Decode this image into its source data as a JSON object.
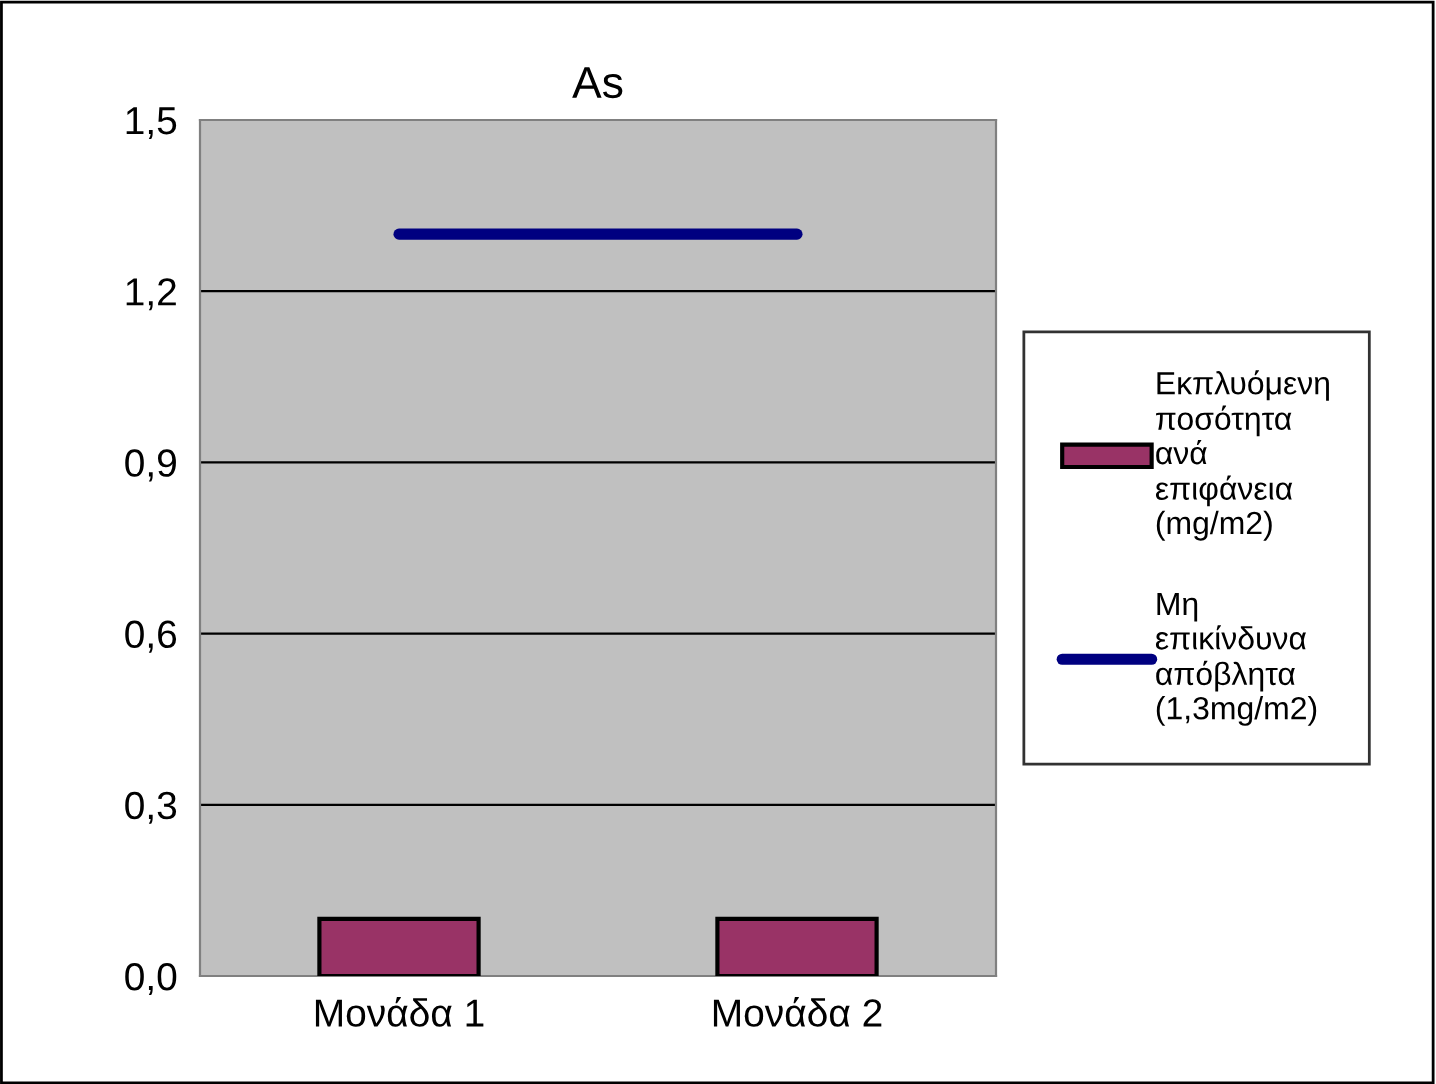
{
  "chart_data": {
    "type": "bar",
    "title": "As",
    "categories": [
      "Μονάδα 1",
      "Μονάδα 2"
    ],
    "series": [
      {
        "name": "Εκπλυόμενη\nποσότητα\nανά\nεπιφάνεια\n(mg/m2)",
        "color": "#993366",
        "values": [
          0.1,
          0.1
        ]
      },
      {
        "name": "Μη\nεπικίνδυνα\nαπόβλητα\n(1,3mg/m2)",
        "color": "#000080",
        "type": "line",
        "values": [
          1.3,
          1.3
        ]
      }
    ],
    "ylim": [
      0,
      1.5
    ],
    "yticks": [
      {
        "value": 0,
        "label": "0,0"
      },
      {
        "value": 0.3,
        "label": "0,3"
      },
      {
        "value": 0.6,
        "label": "0,6"
      },
      {
        "value": 0.9,
        "label": "0,9"
      },
      {
        "value": 1.2,
        "label": "1,2"
      },
      {
        "value": 1.5,
        "label": "1,5"
      }
    ],
    "grid": "y",
    "legend": "right",
    "marker": "none"
  }
}
